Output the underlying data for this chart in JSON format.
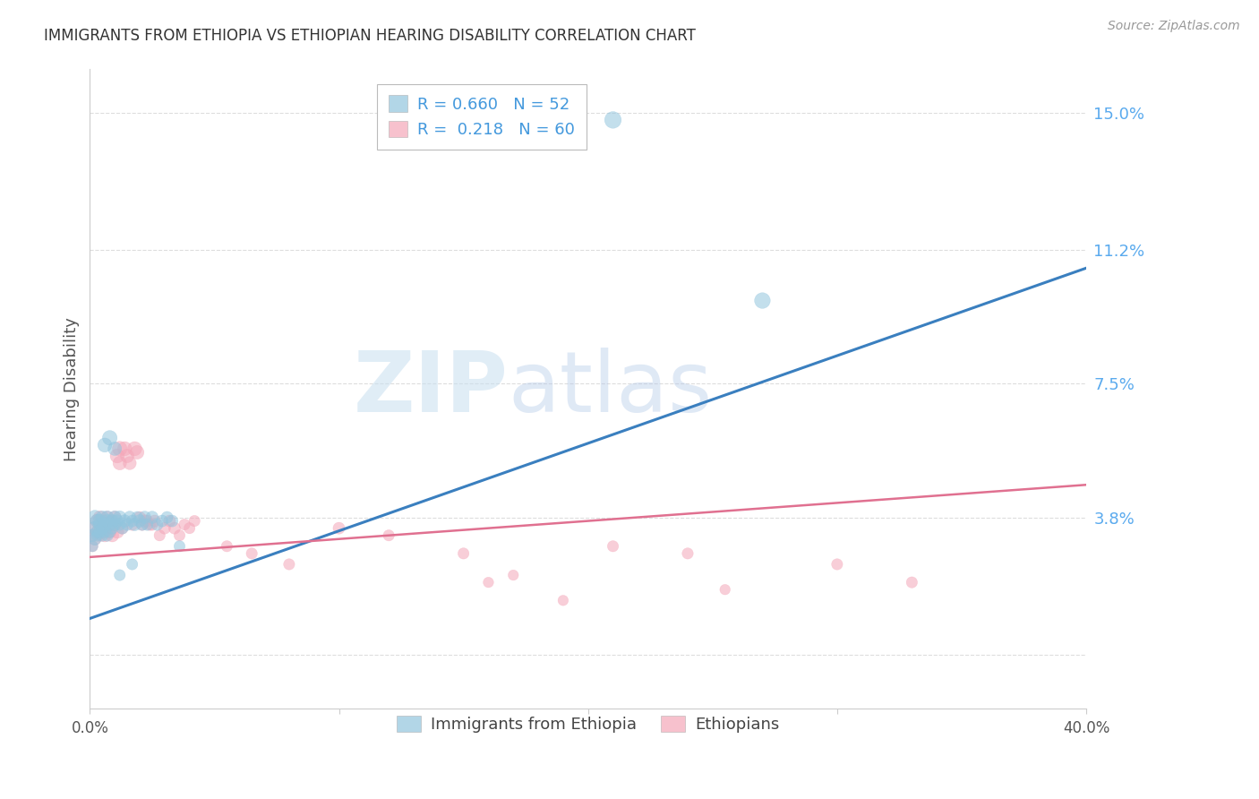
{
  "title": "IMMIGRANTS FROM ETHIOPIA VS ETHIOPIAN HEARING DISABILITY CORRELATION CHART",
  "source": "Source: ZipAtlas.com",
  "ylabel": "Hearing Disability",
  "yticks": [
    0.0,
    0.038,
    0.075,
    0.112,
    0.15
  ],
  "ytick_labels": [
    "",
    "3.8%",
    "7.5%",
    "11.2%",
    "15.0%"
  ],
  "xlim": [
    0.0,
    0.4
  ],
  "ylim": [
    -0.015,
    0.162
  ],
  "legend_entry1": "R = 0.660   N = 52",
  "legend_entry2": "R =  0.218   N = 60",
  "blue_color": "#92c5de",
  "pink_color": "#f4a7b9",
  "blue_line_color": "#3a7fbf",
  "pink_line_color": "#e07090",
  "watermark_zip": "ZIP",
  "watermark_atlas": "atlas",
  "blue_line_x": [
    0.0,
    0.4
  ],
  "blue_line_y": [
    0.01,
    0.107
  ],
  "pink_line_x": [
    0.0,
    0.4
  ],
  "pink_line_y": [
    0.027,
    0.047
  ],
  "blue_scatter_x": [
    0.001,
    0.001,
    0.002,
    0.002,
    0.002,
    0.003,
    0.003,
    0.003,
    0.004,
    0.004,
    0.004,
    0.005,
    0.005,
    0.005,
    0.006,
    0.006,
    0.007,
    0.007,
    0.007,
    0.008,
    0.008,
    0.009,
    0.009,
    0.01,
    0.01,
    0.011,
    0.012,
    0.012,
    0.013,
    0.014,
    0.015,
    0.016,
    0.017,
    0.018,
    0.019,
    0.02,
    0.021,
    0.022,
    0.023,
    0.025,
    0.027,
    0.029,
    0.031,
    0.033,
    0.036,
    0.006,
    0.008,
    0.01,
    0.012,
    0.017,
    0.21,
    0.27
  ],
  "blue_scatter_y": [
    0.033,
    0.03,
    0.035,
    0.032,
    0.038,
    0.034,
    0.037,
    0.033,
    0.036,
    0.034,
    0.037,
    0.033,
    0.038,
    0.035,
    0.036,
    0.034,
    0.037,
    0.033,
    0.038,
    0.036,
    0.034,
    0.037,
    0.035,
    0.036,
    0.038,
    0.037,
    0.036,
    0.038,
    0.035,
    0.037,
    0.036,
    0.038,
    0.037,
    0.036,
    0.038,
    0.037,
    0.036,
    0.038,
    0.036,
    0.038,
    0.036,
    0.037,
    0.038,
    0.037,
    0.03,
    0.058,
    0.06,
    0.057,
    0.022,
    0.025,
    0.148,
    0.098
  ],
  "pink_scatter_x": [
    0.001,
    0.001,
    0.002,
    0.002,
    0.003,
    0.003,
    0.004,
    0.004,
    0.005,
    0.005,
    0.006,
    0.006,
    0.007,
    0.007,
    0.008,
    0.008,
    0.009,
    0.009,
    0.01,
    0.01,
    0.011,
    0.011,
    0.012,
    0.012,
    0.013,
    0.014,
    0.015,
    0.016,
    0.017,
    0.018,
    0.019,
    0.02,
    0.021,
    0.022,
    0.023,
    0.024,
    0.025,
    0.026,
    0.028,
    0.03,
    0.032,
    0.034,
    0.036,
    0.038,
    0.04,
    0.042,
    0.055,
    0.065,
    0.08,
    0.1,
    0.12,
    0.15,
    0.17,
    0.21,
    0.255,
    0.3,
    0.16,
    0.19,
    0.24,
    0.33
  ],
  "pink_scatter_y": [
    0.033,
    0.03,
    0.035,
    0.032,
    0.034,
    0.037,
    0.033,
    0.038,
    0.036,
    0.034,
    0.037,
    0.033,
    0.038,
    0.035,
    0.036,
    0.034,
    0.037,
    0.033,
    0.038,
    0.036,
    0.034,
    0.055,
    0.057,
    0.053,
    0.035,
    0.057,
    0.055,
    0.053,
    0.036,
    0.057,
    0.056,
    0.038,
    0.036,
    0.037,
    0.037,
    0.036,
    0.036,
    0.037,
    0.033,
    0.035,
    0.037,
    0.035,
    0.033,
    0.036,
    0.035,
    0.037,
    0.03,
    0.028,
    0.025,
    0.035,
    0.033,
    0.028,
    0.022,
    0.03,
    0.018,
    0.025,
    0.02,
    0.015,
    0.028,
    0.02
  ],
  "blue_sizes": [
    100,
    80,
    120,
    100,
    130,
    100,
    120,
    90,
    110,
    100,
    120,
    90,
    110,
    100,
    110,
    90,
    110,
    90,
    110,
    100,
    90,
    110,
    90,
    100,
    110,
    100,
    90,
    110,
    90,
    100,
    90,
    100,
    90,
    100,
    90,
    100,
    90,
    100,
    90,
    100,
    90,
    90,
    90,
    90,
    80,
    130,
    140,
    120,
    80,
    80,
    180,
    160
  ],
  "pink_sizes": [
    100,
    80,
    120,
    100,
    100,
    120,
    90,
    110,
    100,
    120,
    90,
    110,
    100,
    110,
    90,
    110,
    90,
    110,
    100,
    90,
    110,
    130,
    140,
    120,
    90,
    130,
    120,
    110,
    90,
    130,
    120,
    90,
    90,
    100,
    90,
    90,
    90,
    90,
    80,
    90,
    90,
    90,
    80,
    80,
    80,
    80,
    80,
    80,
    80,
    90,
    80,
    80,
    70,
    80,
    70,
    80,
    70,
    70,
    80,
    80
  ]
}
